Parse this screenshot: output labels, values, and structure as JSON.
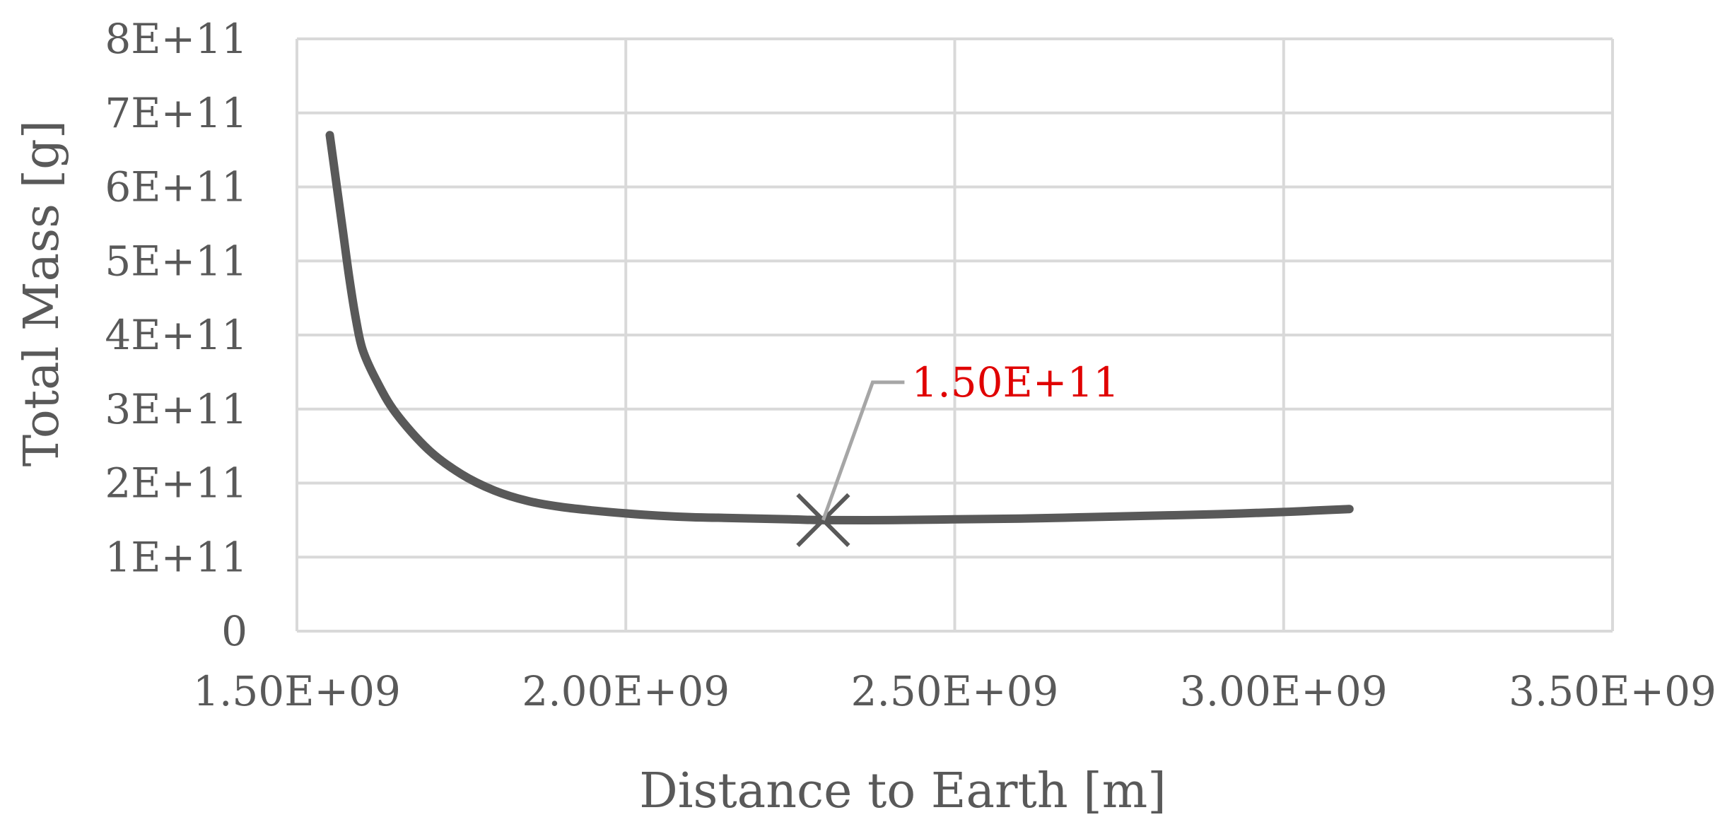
{
  "chart_data": {
    "type": "line",
    "title": "",
    "xlabel": "Distance to Earth [m]",
    "ylabel": "Total Mass [g]",
    "xlim": [
      1500000000.0,
      3500000000.0
    ],
    "ylim": [
      0,
      800000000000.0
    ],
    "x_ticks": [
      1500000000.0,
      2000000000.0,
      2500000000.0,
      3000000000.0,
      3500000000.0
    ],
    "x_tick_labels": [
      "1.50E+09",
      "2.00E+09",
      "2.50E+09",
      "3.00E+09",
      "3.50E+09"
    ],
    "y_ticks": [
      0,
      100000000000.0,
      200000000000.0,
      300000000000.0,
      400000000000.0,
      500000000000.0,
      600000000000.0,
      700000000000.0,
      800000000000.0
    ],
    "y_tick_labels": [
      "0",
      "1E+11",
      "2E+11",
      "3E+11",
      "4E+11",
      "5E+11",
      "6E+11",
      "7E+11",
      "8E+11"
    ],
    "grid": true,
    "legend": "none",
    "series": [
      {
        "color": "#595959",
        "x": [
          1550000000.0,
          1560000000.0,
          1570000000.0,
          1580000000.0,
          1590000000.0,
          1600000000.0,
          1620000000.0,
          1650000000.0,
          1700000000.0,
          1750000000.0,
          1800000000.0,
          1850000000.0,
          1900000000.0,
          1950000000.0,
          2000000000.0,
          2050000000.0,
          2100000000.0,
          2150000000.0,
          2200000000.0,
          2250000000.0,
          2300000000.0,
          2400000000.0,
          2500000000.0,
          2600000000.0,
          2700000000.0,
          2800000000.0,
          2900000000.0,
          3000000000.0,
          3050000000.0,
          3100000000.0
        ],
        "y": [
          670000000000.0,
          605000000000.0,
          540000000000.0,
          475000000000.0,
          420000000000.0,
          380000000000.0,
          340000000000.0,
          295000000000.0,
          245000000000.0,
          212000000000.0,
          190000000000.0,
          176000000000.0,
          168000000000.0,
          163000000000.0,
          159000000000.0,
          156000000000.0,
          154000000000.0,
          153000000000.0,
          152000000000.0,
          151000000000.0,
          150000000000.0,
          150000000000.0,
          151000000000.0,
          152000000000.0,
          154000000000.0,
          156000000000.0,
          158000000000.0,
          161000000000.0,
          163000000000.0,
          165000000000.0
        ]
      }
    ],
    "marker": {
      "x": 2300000000.0,
      "y": 150000000000.0,
      "symbol": "x",
      "label": "1.50E+11",
      "label_color": "#e00000"
    },
    "colors": {
      "grid": "#d9d9d9",
      "line": "#595959",
      "text": "#595959",
      "leader": "#a6a6a6"
    }
  }
}
